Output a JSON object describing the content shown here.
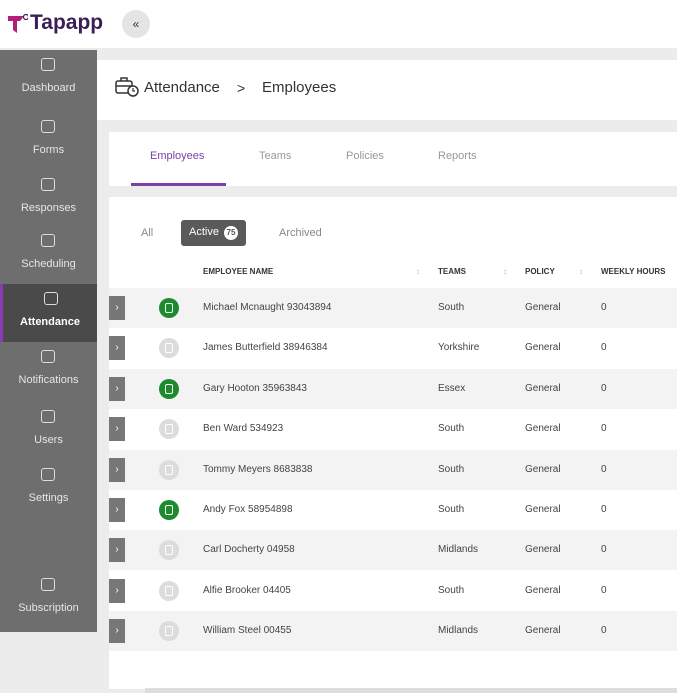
{
  "header": {
    "logo": "Tapapp",
    "collapse": "«"
  },
  "nav": [
    {
      "label": "Dashboard"
    },
    {
      "label": "Forms"
    },
    {
      "label": "Responses"
    },
    {
      "label": "Scheduling"
    },
    {
      "label": "Attendance",
      "active": true
    },
    {
      "label": "Notifications"
    },
    {
      "label": "Users"
    },
    {
      "label": "Settings"
    },
    {
      "label": "Subscription"
    }
  ],
  "breadcrumb": {
    "section": "Attendance",
    "separator": ">",
    "page": "Employees"
  },
  "tabs": [
    {
      "label": "Employees",
      "active": true
    },
    {
      "label": "Teams"
    },
    {
      "label": "Policies"
    },
    {
      "label": "Reports"
    }
  ],
  "filters": [
    {
      "label": "All"
    },
    {
      "label": "Active",
      "count": 75,
      "active": true
    },
    {
      "label": "Archived"
    }
  ],
  "table": {
    "columns": [
      "EMPLOYEE NAME",
      "TEAMS",
      "POLICY",
      "WEEKLY HOURS"
    ],
    "rows": [
      {
        "name": "Michael Mcnaught 93043894",
        "team": "South",
        "policy": "General",
        "hours": 0,
        "badge_color": "#1e8a2e"
      },
      {
        "name": "James Butterfield 38946384",
        "team": "Yorkshire",
        "policy": "General",
        "hours": 0,
        "badge_color": "#dcdcdc"
      },
      {
        "name": "Gary Hooton 35963843",
        "team": "Essex",
        "policy": "General",
        "hours": 0,
        "badge_color": "#1e8a2e"
      },
      {
        "name": "Ben Ward 534923",
        "team": "South",
        "policy": "General",
        "hours": 0,
        "badge_color": "#dcdcdc"
      },
      {
        "name": "Tommy Meyers 8683838",
        "team": "South",
        "policy": "General",
        "hours": 0,
        "badge_color": "#dcdcdc"
      },
      {
        "name": "Andy Fox 58954898",
        "team": "South",
        "policy": "General",
        "hours": 0,
        "badge_color": "#1e8a2e"
      },
      {
        "name": "Carl Docherty 04958",
        "team": "Midlands",
        "policy": "General",
        "hours": 0,
        "badge_color": "#dcdcdc"
      },
      {
        "name": "Alfie Brooker 04405",
        "team": "South",
        "policy": "General",
        "hours": 0,
        "badge_color": "#dcdcdc"
      },
      {
        "name": "William Steel 00455",
        "team": "Midlands",
        "policy": "General",
        "hours": 0,
        "badge_color": "#dcdcdc"
      }
    ]
  }
}
